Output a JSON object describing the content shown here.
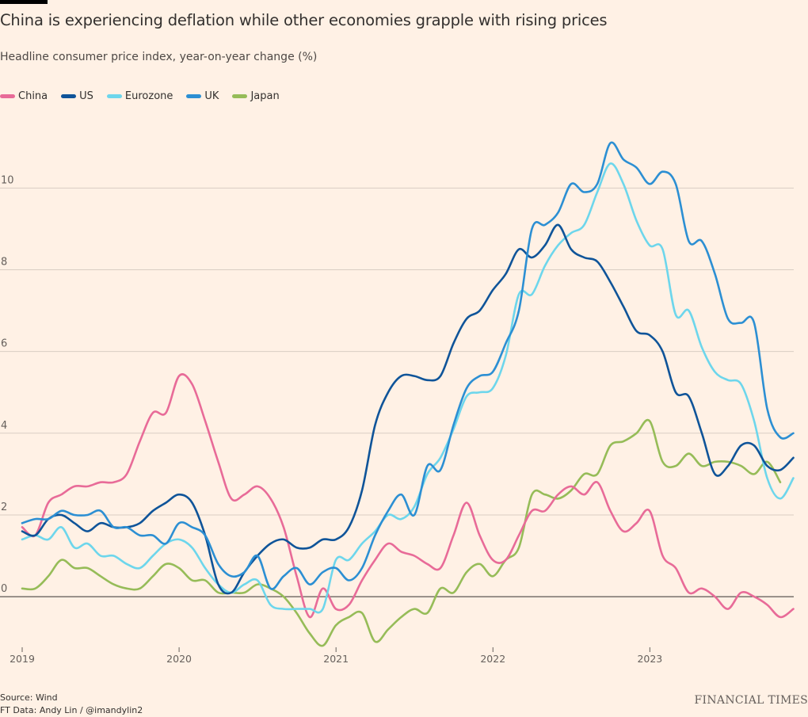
{
  "chart_data": {
    "type": "line",
    "title": "China is experiencing deflation while other economies grapple with rising prices",
    "subtitle": "Headline consumer price index, year-on-year change (%)",
    "ylim": [
      -1.2,
      11.5
    ],
    "yticks": [
      0,
      2,
      4,
      6,
      8,
      10
    ],
    "xlim": [
      2019.0,
      2023.917
    ],
    "xticks": [
      {
        "value": 2019,
        "label": "2019"
      },
      {
        "value": 2020,
        "label": "2020"
      },
      {
        "value": 2021,
        "label": "2021"
      },
      {
        "value": 2022,
        "label": "2022"
      },
      {
        "value": 2023,
        "label": "2023"
      }
    ],
    "grid": true,
    "legend_position": "top-left",
    "series": [
      {
        "name": "China",
        "color": "#e86b98",
        "start": 2019,
        "step": 0.0833,
        "values": [
          1.7,
          1.5,
          2.3,
          2.5,
          2.7,
          2.7,
          2.8,
          2.8,
          3.0,
          3.8,
          4.5,
          4.5,
          5.4,
          5.2,
          4.3,
          3.3,
          2.4,
          2.5,
          2.7,
          2.4,
          1.7,
          0.5,
          -0.5,
          0.2,
          -0.3,
          -0.2,
          0.4,
          0.9,
          1.3,
          1.1,
          1.0,
          0.8,
          0.7,
          1.5,
          2.3,
          1.5,
          0.9,
          0.9,
          1.5,
          2.1,
          2.1,
          2.5,
          2.7,
          2.5,
          2.8,
          2.1,
          1.6,
          1.8,
          2.1,
          1.0,
          0.7,
          0.1,
          0.2,
          0.0,
          -0.3,
          0.1,
          0.0,
          -0.2,
          -0.5,
          -0.3
        ]
      },
      {
        "name": "US",
        "color": "#0f5499",
        "start": 2019,
        "step": 0.0833,
        "values": [
          1.6,
          1.5,
          1.9,
          2.0,
          1.8,
          1.6,
          1.8,
          1.7,
          1.7,
          1.8,
          2.1,
          2.3,
          2.5,
          2.3,
          1.5,
          0.3,
          0.1,
          0.6,
          1.0,
          1.3,
          1.4,
          1.2,
          1.2,
          1.4,
          1.4,
          1.7,
          2.6,
          4.2,
          5.0,
          5.4,
          5.4,
          5.3,
          5.4,
          6.2,
          6.8,
          7.0,
          7.5,
          7.9,
          8.5,
          8.3,
          8.6,
          9.1,
          8.5,
          8.3,
          8.2,
          7.7,
          7.1,
          6.5,
          6.4,
          6.0,
          5.0,
          4.9,
          4.0,
          3.0,
          3.2,
          3.7,
          3.7,
          3.2,
          3.1,
          3.4
        ]
      },
      {
        "name": "Eurozone",
        "color": "#6dd6ec",
        "start": 2019,
        "step": 0.0833,
        "values": [
          1.4,
          1.5,
          1.4,
          1.7,
          1.2,
          1.3,
          1.0,
          1.0,
          0.8,
          0.7,
          1.0,
          1.3,
          1.4,
          1.2,
          0.7,
          0.3,
          0.1,
          0.3,
          0.4,
          -0.2,
          -0.3,
          -0.3,
          -0.3,
          -0.3,
          0.9,
          0.9,
          1.3,
          1.6,
          2.0,
          1.9,
          2.2,
          3.0,
          3.4,
          4.1,
          4.9,
          5.0,
          5.1,
          5.9,
          7.4,
          7.4,
          8.1,
          8.6,
          8.9,
          9.1,
          9.9,
          10.6,
          10.1,
          9.2,
          8.6,
          8.5,
          6.9,
          7.0,
          6.1,
          5.5,
          5.3,
          5.2,
          4.3,
          2.9,
          2.4,
          2.9
        ]
      },
      {
        "name": "UK",
        "color": "#2c8fd3",
        "start": 2019,
        "step": 0.0833,
        "values": [
          1.8,
          1.9,
          1.9,
          2.1,
          2.0,
          2.0,
          2.1,
          1.7,
          1.7,
          1.5,
          1.5,
          1.3,
          1.8,
          1.7,
          1.5,
          0.8,
          0.5,
          0.6,
          1.0,
          0.2,
          0.5,
          0.7,
          0.3,
          0.6,
          0.7,
          0.4,
          0.7,
          1.5,
          2.1,
          2.5,
          2.0,
          3.2,
          3.1,
          4.2,
          5.1,
          5.4,
          5.5,
          6.2,
          7.0,
          9.0,
          9.1,
          9.4,
          10.1,
          9.9,
          10.1,
          11.1,
          10.7,
          10.5,
          10.1,
          10.4,
          10.1,
          8.7,
          8.7,
          7.9,
          6.8,
          6.7,
          6.7,
          4.6,
          3.9,
          4.0
        ]
      },
      {
        "name": "Japan",
        "color": "#96bc58",
        "start": 2019,
        "step": 0.0833,
        "values": [
          0.2,
          0.2,
          0.5,
          0.9,
          0.7,
          0.7,
          0.5,
          0.3,
          0.2,
          0.2,
          0.5,
          0.8,
          0.7,
          0.4,
          0.4,
          0.1,
          0.1,
          0.1,
          0.3,
          0.2,
          0.0,
          -0.4,
          -0.9,
          -1.2,
          -0.7,
          -0.5,
          -0.4,
          -1.1,
          -0.8,
          -0.5,
          -0.3,
          -0.4,
          0.2,
          0.1,
          0.6,
          0.8,
          0.5,
          0.9,
          1.2,
          2.5,
          2.5,
          2.4,
          2.6,
          3.0,
          3.0,
          3.7,
          3.8,
          4.0,
          4.3,
          3.3,
          3.2,
          3.5,
          3.2,
          3.3,
          3.3,
          3.2,
          3.0,
          3.3,
          2.8
        ]
      }
    ]
  },
  "footer": {
    "source": "Source: Wind",
    "credit": "FT Data: Andy Lin / @imandylin2",
    "brand": "FINANCIAL TIMES"
  }
}
